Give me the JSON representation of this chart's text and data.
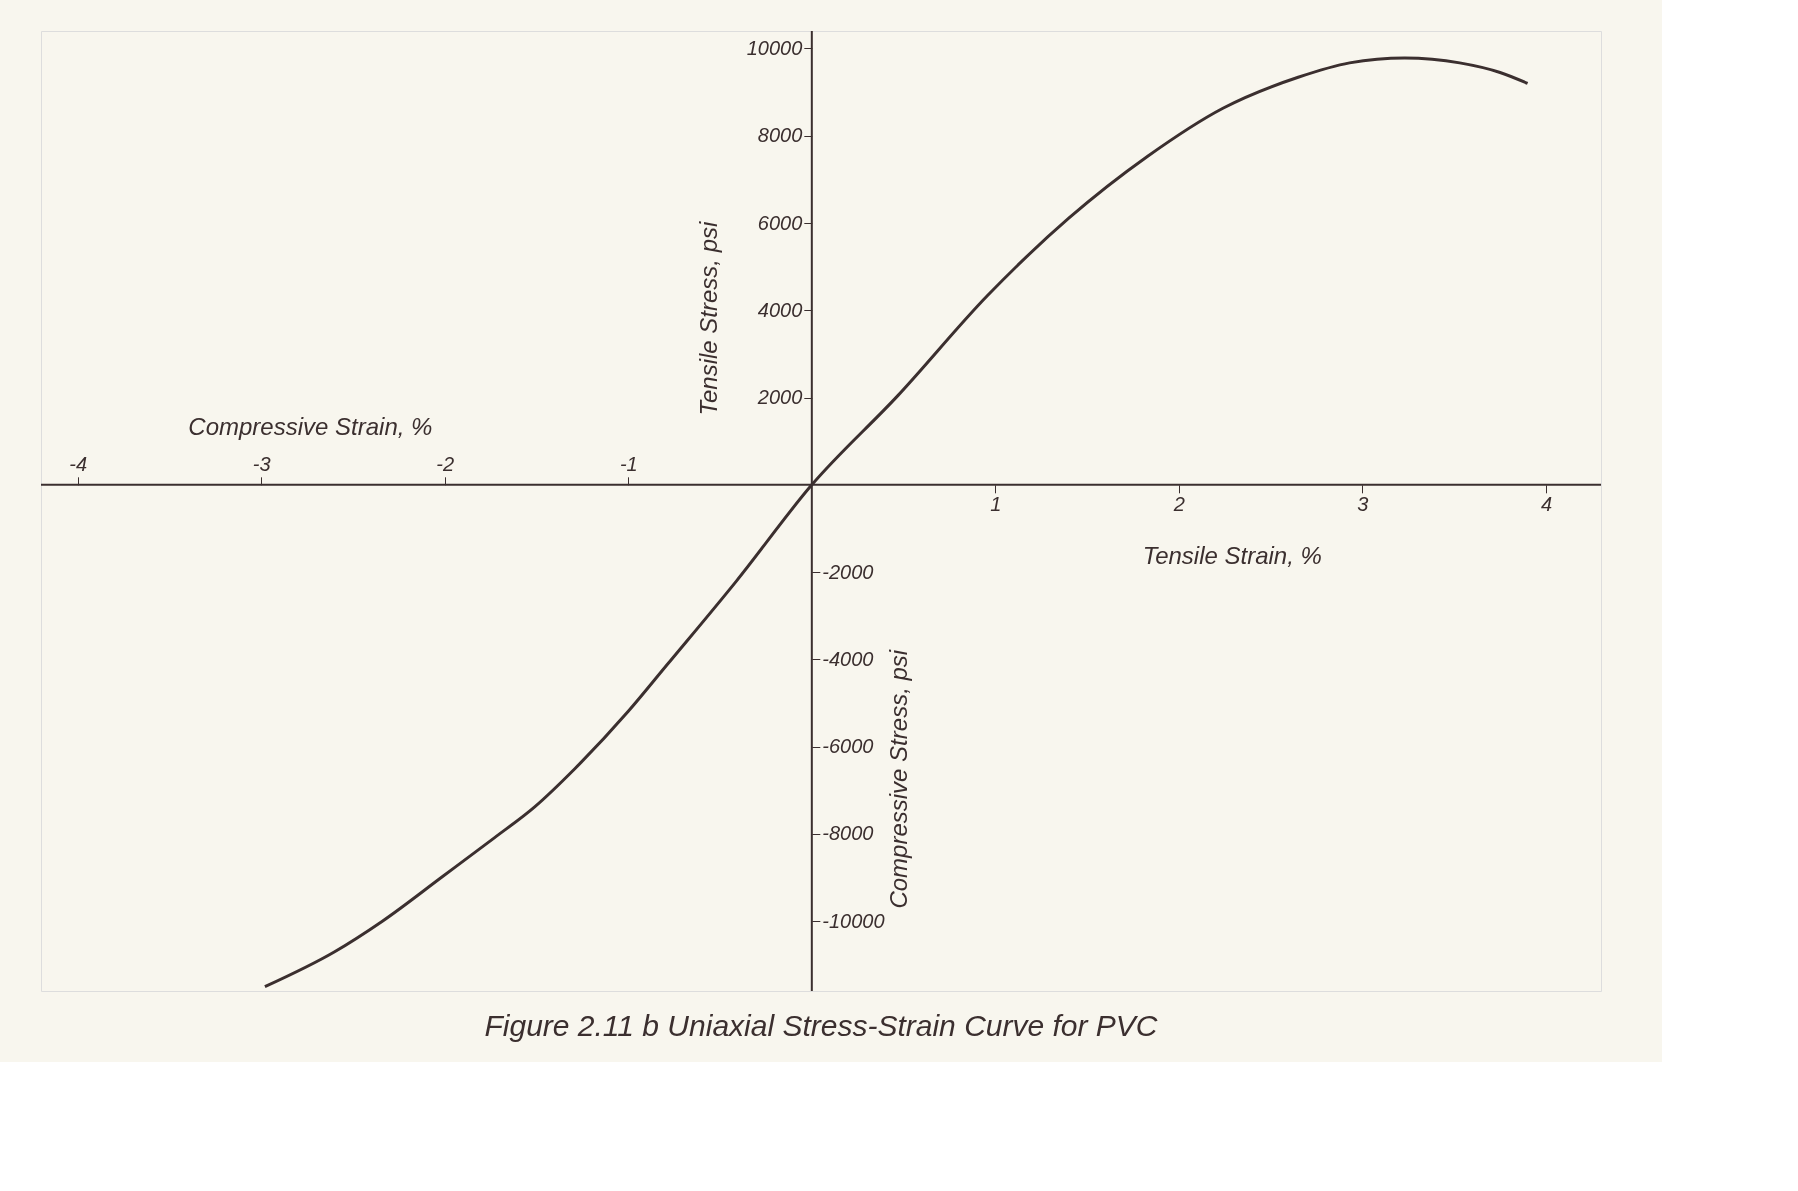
{
  "chart_data": {
    "type": "line",
    "title": "Figure 2.11 b Uniaxial Stress-Strain Curve for PVC",
    "xlabel": "Tensile Strain, %",
    "x2label": "Compressive Strain, %",
    "ylabel": "Tensile Stress, psi",
    "y2label": "Compressive Stress, psi",
    "xlim": [
      -4.2,
      4.3
    ],
    "xticks": [
      1,
      2,
      3,
      4
    ],
    "x2lim": [
      -4.2,
      4.3
    ],
    "x2ticks": [
      -4,
      -3,
      -2,
      -1
    ],
    "ylim": [
      -11600,
      10400
    ],
    "yticks": [
      2000,
      4000,
      6000,
      8000,
      10000
    ],
    "y2lim": [
      -11600,
      10400
    ],
    "y2ticks": [
      -2000,
      -4000,
      -6000,
      -8000,
      -10000
    ],
    "grid": false,
    "line_style": "solid",
    "series": [
      {
        "color": "#3b2f2f",
        "x": [
          -2.98,
          -2.6,
          -2.34,
          -2.01,
          -1.73,
          -1.51,
          -1.29,
          -1.0,
          -0.79,
          -0.41,
          0,
          0.47,
          0.96,
          1.4,
          1.83,
          2.24,
          2.65,
          2.93,
          3.23,
          3.53,
          3.75,
          3.9
        ],
        "values": [
          -11500,
          -10700,
          -10000,
          -8970,
          -8090,
          -7380,
          -6500,
          -5190,
          -4130,
          -2200,
          0,
          2050,
          4350,
          6110,
          7530,
          8630,
          9340,
          9670,
          9780,
          9670,
          9450,
          9200
        ]
      }
    ]
  }
}
